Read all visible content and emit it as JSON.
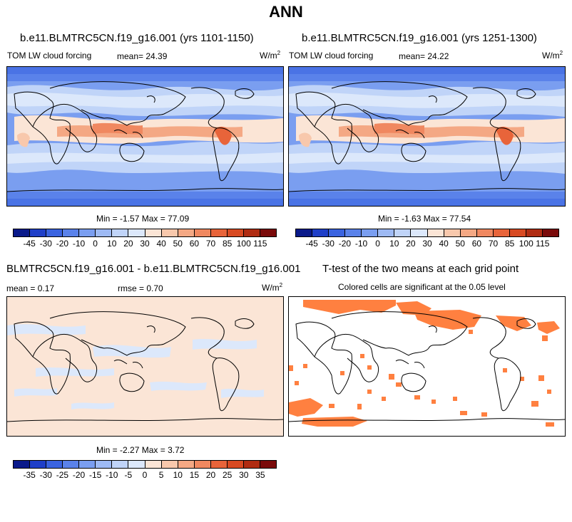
{
  "title": "ANN",
  "panels": [
    {
      "title": "b.e11.BLMTRC5CN.f19_g16.001 (yrs 1101-1150)",
      "left_label": "TOM LW cloud forcing",
      "mean_label": "mean=",
      "mean_value": "24.39",
      "units": "W/m",
      "units_sup": "2",
      "min_label": "Min =",
      "min_value": "-1.57",
      "max_label": "Max =",
      "max_value": "77.09"
    },
    {
      "title": "b.e11.BLMTRC5CN.f19_g16.001 (yrs 1251-1300)",
      "left_label": "TOM LW cloud forcing",
      "mean_label": "mean=",
      "mean_value": "24.22",
      "units": "W/m",
      "units_sup": "2",
      "min_label": "Min =",
      "min_value": "-1.63",
      "max_label": "Max =",
      "max_value": "77.54"
    },
    {
      "title": "BLMTRC5CN.f19_g16.001 - b.e11.BLMTRC5CN.f19_g16.001",
      "mean_label": "mean =",
      "mean_value": "0.17",
      "rmse_label": "rmse =",
      "rmse_value": "0.70",
      "units": "W/m",
      "units_sup": "2",
      "min_label": "Min =",
      "min_value": "-2.27",
      "max_label": "Max =",
      "max_value": "3.72"
    },
    {
      "title": "T-test of the two means at each grid point",
      "subtitle": "Colored cells are significant at the 0.05 level",
      "significance_color": "#ff8040"
    }
  ],
  "colorbar_field": {
    "colors": [
      "#0a1a8a",
      "#1f3fc8",
      "#3a63e0",
      "#5a82ea",
      "#7a9ef0",
      "#9ebaf4",
      "#c0d4f8",
      "#dce8fb",
      "#fbe5d6",
      "#f8c8ac",
      "#f4a884",
      "#f08860",
      "#e8643a",
      "#d84a22",
      "#b02c12",
      "#7a0a0a"
    ],
    "ticks": [
      "-45",
      "-30",
      "-20",
      "-10",
      "0",
      "10",
      "20",
      "30",
      "40",
      "50",
      "60",
      "70",
      "85",
      "100",
      "115"
    ]
  },
  "colorbar_diff": {
    "colors": [
      "#0a1a8a",
      "#1f3fc8",
      "#3a63e0",
      "#5a82ea",
      "#7a9ef0",
      "#9ebaf4",
      "#c0d4f8",
      "#dce8fb",
      "#fbe5d6",
      "#f8c8ac",
      "#f4a884",
      "#f08860",
      "#e8643a",
      "#d84a22",
      "#b02c12",
      "#7a0a0a"
    ],
    "ticks": [
      "-35",
      "-30",
      "-25",
      "-20",
      "-15",
      "-10",
      "-5",
      "0",
      "5",
      "10",
      "15",
      "20",
      "25",
      "30",
      "35"
    ]
  }
}
